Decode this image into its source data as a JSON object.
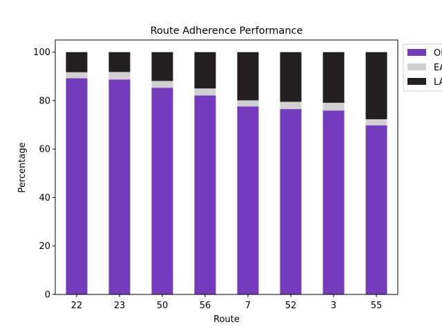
{
  "chart_data": {
    "type": "bar",
    "stacked": true,
    "title": "Route Adherence Performance",
    "xlabel": "Route",
    "ylabel": "Percentage",
    "ylim": [
      0,
      105
    ],
    "yticks": [
      0,
      20,
      40,
      60,
      80,
      100
    ],
    "categories": [
      "22",
      "23",
      "50",
      "56",
      "7",
      "52",
      "3",
      "55"
    ],
    "series": [
      {
        "name": "OI",
        "color": "#753bbd",
        "values": [
          89.2,
          88.7,
          85.3,
          82.1,
          77.6,
          76.5,
          75.9,
          69.8
        ]
      },
      {
        "name": "EA",
        "color": "#d0d0d0",
        "values": [
          2.5,
          3.1,
          2.8,
          2.9,
          2.5,
          3.0,
          3.2,
          2.5
        ]
      },
      {
        "name": "LA",
        "color": "#231f20",
        "values": [
          8.3,
          8.2,
          11.9,
          15.0,
          19.9,
          20.5,
          20.9,
          27.7
        ]
      }
    ],
    "legend": {
      "placement": "outside-right"
    }
  }
}
